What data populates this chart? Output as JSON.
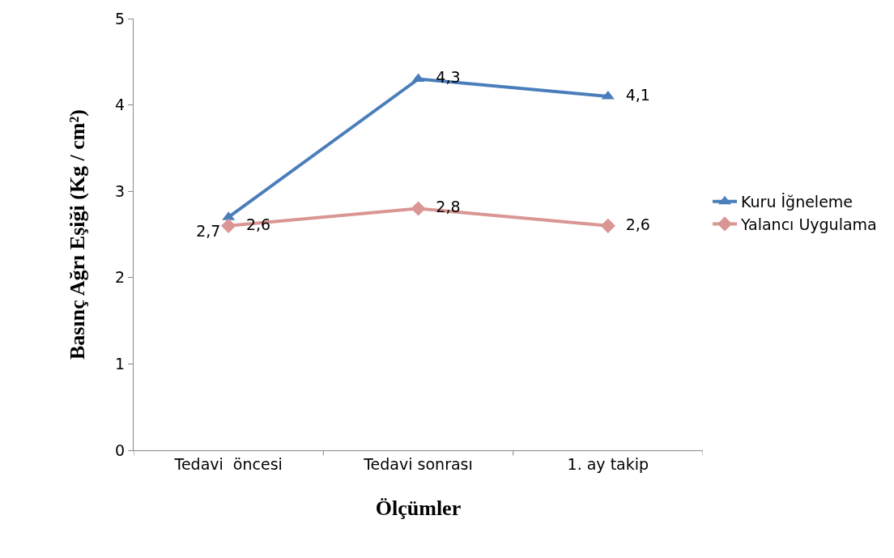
{
  "chart_data": {
    "type": "line",
    "xlabel": "Ölçümler",
    "ylabel": "Basınç Ağrı Eşiği (Kg / cm²)",
    "categories": [
      "Tedavi  öncesi",
      "Tedavi sonrası",
      "1. ay takip"
    ],
    "series": [
      {
        "name": "Kuru İğneleme",
        "color": "#4a7ebb",
        "marker": "triangle",
        "values": [
          2.7,
          4.3,
          4.1
        ],
        "value_labels": [
          "2,7",
          "4,3",
          "4,1"
        ]
      },
      {
        "name": "Yalancı Uygulama",
        "color": "#d99694",
        "marker": "diamond",
        "values": [
          2.6,
          2.8,
          2.6
        ],
        "value_labels": [
          "2,6",
          "2,8",
          "2,6"
        ]
      }
    ],
    "ylim": [
      0,
      5
    ],
    "yticks": [
      0,
      1,
      2,
      3,
      4,
      5
    ],
    "legend": "right"
  }
}
